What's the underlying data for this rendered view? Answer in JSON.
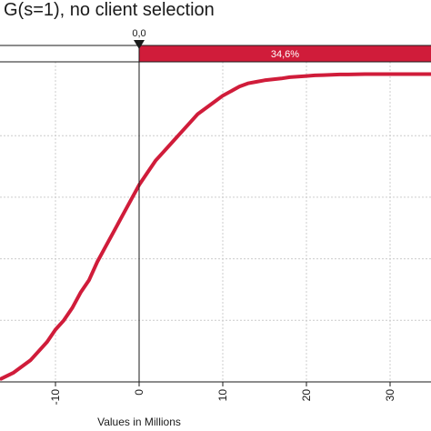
{
  "chart_data": {
    "type": "line",
    "title": "G(s=1), no client selection",
    "xlabel": "Values in Millions",
    "ylabel": "",
    "xlim": [
      -16.5,
      35
    ],
    "ylim": [
      0,
      1.04
    ],
    "grid": true,
    "x_ticks": [
      -10,
      0,
      10,
      20,
      30
    ],
    "x_tick_labels": [
      "-10",
      "0",
      "10",
      "20",
      "30"
    ],
    "marker": {
      "label": "0,0",
      "x": 0
    },
    "band": {
      "label": "34,6%",
      "from_x": 0
    },
    "colors": {
      "line": "#d01c3a",
      "band": "#d01c3a",
      "frame": "#1a1a1a",
      "grid": "#cccccc"
    },
    "series": [
      {
        "values_x": [
          -16.5,
          -15,
          -13,
          -12,
          -11,
          -10,
          -9,
          -8,
          -7,
          -6,
          -5,
          -4,
          -3,
          -2,
          -1,
          0,
          1,
          2,
          3,
          4,
          5,
          6,
          7,
          8,
          9,
          10,
          11,
          12,
          13,
          14,
          15,
          16,
          17,
          18,
          19,
          20,
          21,
          22,
          23,
          24,
          25,
          27,
          30,
          33,
          35
        ],
        "values_y": [
          0.01,
          0.03,
          0.07,
          0.1,
          0.13,
          0.17,
          0.2,
          0.24,
          0.29,
          0.33,
          0.39,
          0.44,
          0.49,
          0.54,
          0.59,
          0.64,
          0.68,
          0.72,
          0.75,
          0.78,
          0.81,
          0.84,
          0.87,
          0.89,
          0.91,
          0.93,
          0.945,
          0.96,
          0.97,
          0.975,
          0.98,
          0.983,
          0.986,
          0.99,
          0.992,
          0.994,
          0.996,
          0.997,
          0.998,
          0.999,
          0.999,
          1.0,
          1.0,
          1.0,
          1.0
        ]
      }
    ]
  }
}
